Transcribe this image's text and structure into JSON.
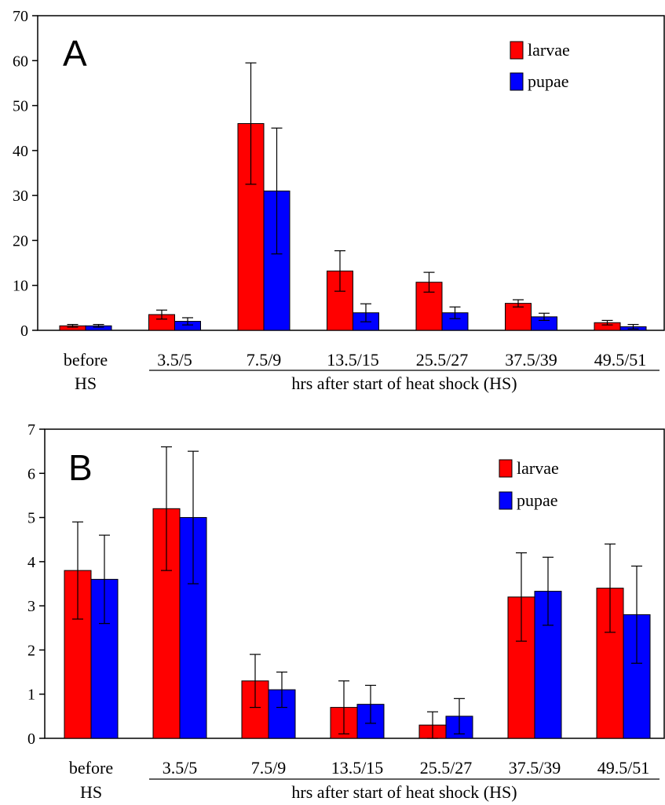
{
  "colors": {
    "larvae": "#ff0000",
    "pupae": "#0000ff",
    "axis": "#000000"
  },
  "chart_data": [
    {
      "type": "bar",
      "panel": "A",
      "categories": [
        "before\nHS",
        "3.5/5",
        "7.5/9",
        "13.5/15",
        "25.5/27",
        "37.5/39",
        "49.5/51"
      ],
      "category_lines": [
        [
          "before",
          "HS"
        ],
        [
          "3.5/5"
        ],
        [
          "7.5/9"
        ],
        [
          "13.5/15"
        ],
        [
          "25.5/27"
        ],
        [
          "37.5/39"
        ],
        [
          "49.5/51"
        ]
      ],
      "xlabel": "hrs after start of heat shock (HS)",
      "ylim": [
        0,
        70
      ],
      "yticks": [
        0,
        10,
        20,
        30,
        40,
        50,
        60,
        70
      ],
      "legend_position": "top-right",
      "series": [
        {
          "name": "larvae",
          "color": "#ff0000",
          "values": [
            1,
            3.5,
            46,
            13.2,
            10.7,
            6,
            1.7
          ],
          "errors": [
            0.3,
            1,
            13.5,
            4.5,
            2.2,
            0.8,
            0.5
          ]
        },
        {
          "name": "pupae",
          "color": "#0000ff",
          "values": [
            1,
            2,
            31,
            3.9,
            3.9,
            3,
            0.8
          ],
          "errors": [
            0.3,
            0.8,
            14,
            2,
            1.3,
            0.8,
            0.5
          ]
        }
      ]
    },
    {
      "type": "bar",
      "panel": "B",
      "categories": [
        "before\nHS",
        "3.5/5",
        "7.5/9",
        "13.5/15",
        "25.5/27",
        "37.5/39",
        "49.5/51"
      ],
      "category_lines": [
        [
          "before",
          "HS"
        ],
        [
          "3.5/5"
        ],
        [
          "7.5/9"
        ],
        [
          "13.5/15"
        ],
        [
          "25.5/27"
        ],
        [
          "37.5/39"
        ],
        [
          "49.5/51"
        ]
      ],
      "xlabel": "hrs after start of heat shock (HS)",
      "ylim": [
        0,
        7
      ],
      "yticks": [
        0,
        1,
        2,
        3,
        4,
        5,
        6,
        7
      ],
      "legend_position": "top-right",
      "series": [
        {
          "name": "larvae",
          "color": "#ff0000",
          "values": [
            3.8,
            5.2,
            1.3,
            0.7,
            0.3,
            3.2,
            3.4
          ],
          "errors": [
            1.1,
            1.4,
            0.6,
            0.6,
            0.3,
            1.0,
            1.0
          ]
        },
        {
          "name": "pupae",
          "color": "#0000ff",
          "values": [
            3.6,
            5.0,
            1.1,
            0.77,
            0.5,
            3.33,
            2.8
          ],
          "errors": [
            1.0,
            1.5,
            0.4,
            0.43,
            0.4,
            0.77,
            1.1
          ]
        }
      ]
    }
  ]
}
